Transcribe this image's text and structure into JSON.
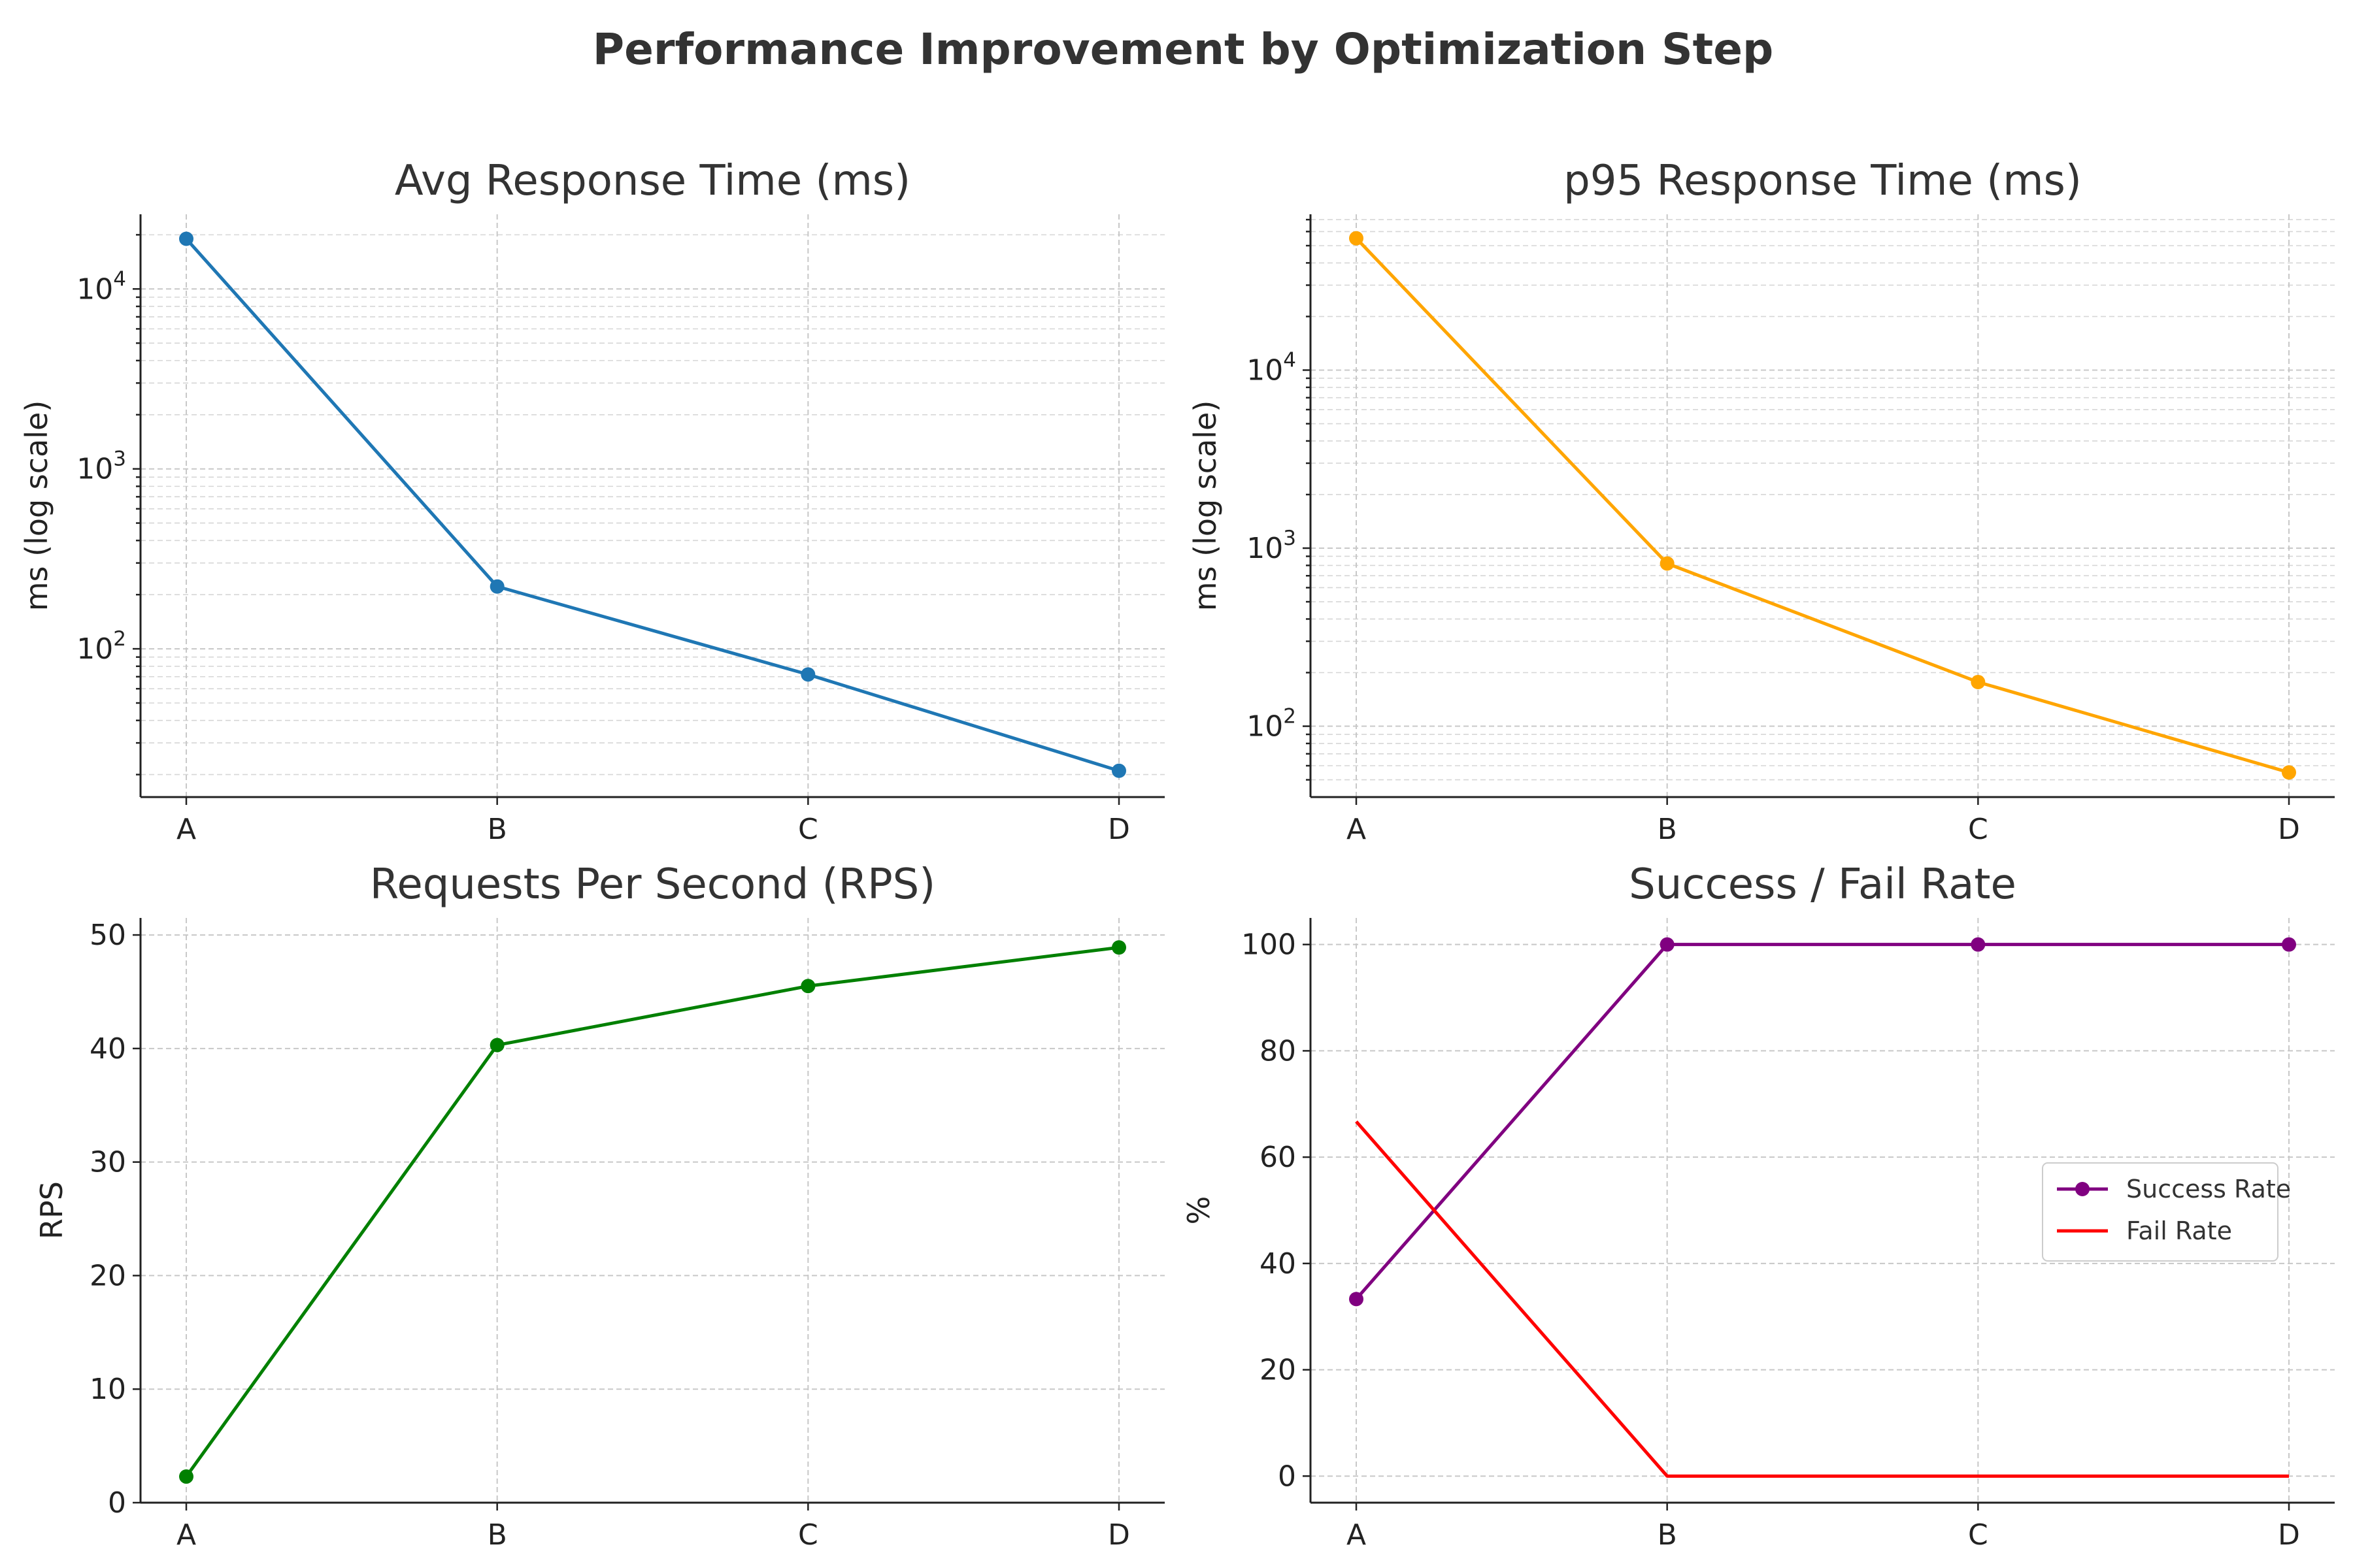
{
  "title": "Performance Improvement by Optimization Step",
  "chart_data": [
    {
      "type": "line",
      "title": "Avg Response Time (ms)",
      "xlabel": "",
      "ylabel": "ms (log scale)",
      "yscale": "log",
      "ylim": [
        15,
        26000
      ],
      "yticks": [
        100,
        1000,
        10000
      ],
      "categories": [
        "A",
        "B",
        "C",
        "D"
      ],
      "grid": true,
      "series": [
        {
          "values": [
            19000,
            222,
            72,
            21
          ],
          "color": "#1f77b4",
          "marker": true
        }
      ]
    },
    {
      "type": "line",
      "title": "p95 Response Time (ms)",
      "xlabel": "",
      "ylabel": "ms (log scale)",
      "yscale": "log",
      "ylim": [
        40,
        75000
      ],
      "yticks": [
        100,
        1000,
        10000
      ],
      "categories": [
        "A",
        "B",
        "C",
        "D"
      ],
      "grid": true,
      "series": [
        {
          "values": [
            55000,
            820,
            177,
            55
          ],
          "color": "#ffa500",
          "marker": true
        }
      ]
    },
    {
      "type": "line",
      "title": "Requests Per Second (RPS)",
      "xlabel": "",
      "ylabel": "RPS",
      "yscale": "linear",
      "ylim": [
        0,
        51.5
      ],
      "yticks": [
        0,
        10,
        20,
        30,
        40,
        50
      ],
      "categories": [
        "A",
        "B",
        "C",
        "D"
      ],
      "grid": true,
      "series": [
        {
          "values": [
            2.3,
            40.3,
            45.5,
            48.9
          ],
          "color": "#008000",
          "marker": true
        }
      ]
    },
    {
      "type": "line",
      "title": "Success / Fail Rate",
      "xlabel": "",
      "ylabel": "%",
      "yscale": "linear",
      "ylim": [
        -5,
        105
      ],
      "yticks": [
        0,
        20,
        40,
        60,
        80,
        100
      ],
      "categories": [
        "A",
        "B",
        "C",
        "D"
      ],
      "grid": true,
      "legend": "center-right",
      "series": [
        {
          "name": "Success Rate",
          "values": [
            33.3,
            100,
            100,
            100
          ],
          "color": "#800080",
          "marker": true
        },
        {
          "name": "Fail Rate",
          "values": [
            66.7,
            0,
            0,
            0
          ],
          "color": "#ff0000",
          "marker": false
        }
      ]
    }
  ]
}
